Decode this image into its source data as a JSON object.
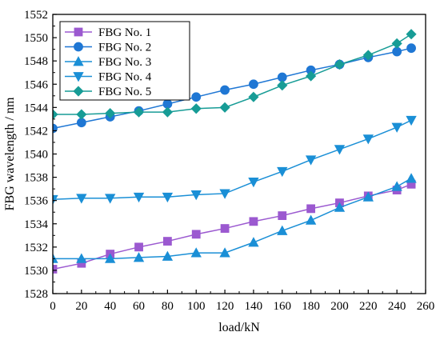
{
  "chart_data": {
    "type": "line",
    "title": "",
    "xlabel": "load/kN",
    "ylabel": "FBG wavelength / nm",
    "xlim": [
      0,
      260
    ],
    "ylim": [
      1528,
      1552
    ],
    "xticks": [
      0,
      20,
      40,
      60,
      80,
      100,
      120,
      140,
      160,
      180,
      200,
      220,
      240,
      260
    ],
    "yticks": [
      1528,
      1530,
      1532,
      1534,
      1536,
      1538,
      1540,
      1542,
      1544,
      1546,
      1548,
      1550,
      1552
    ],
    "grid": false,
    "legend_position": "top-left",
    "x": [
      0,
      20,
      40,
      60,
      80,
      100,
      120,
      140,
      160,
      180,
      200,
      220,
      240,
      250
    ],
    "series": [
      {
        "name": "FBG No. 1",
        "color": "#9b59d0",
        "marker": "square",
        "values": [
          1530.1,
          1530.6,
          1531.4,
          1532.0,
          1532.5,
          1533.1,
          1533.6,
          1534.2,
          1534.7,
          1535.3,
          1535.8,
          1536.4,
          1536.9,
          1537.4
        ]
      },
      {
        "name": "FBG No. 2",
        "color": "#1f77d4",
        "marker": "circle",
        "values": [
          1542.2,
          1542.7,
          1543.2,
          1543.7,
          1544.3,
          1544.9,
          1545.5,
          1546.0,
          1546.6,
          1547.2,
          1547.7,
          1548.3,
          1548.8,
          1549.1
        ]
      },
      {
        "name": "FBG No. 3",
        "color": "#1a8fd6",
        "marker": "triangle-up",
        "values": [
          1531.0,
          1531.0,
          1531.0,
          1531.1,
          1531.2,
          1531.5,
          1531.5,
          1532.4,
          1533.4,
          1534.3,
          1535.4,
          1536.3,
          1537.2,
          1537.9
        ]
      },
      {
        "name": "FBG No. 4",
        "color": "#1a8fd6",
        "marker": "triangle-down",
        "values": [
          1536.1,
          1536.2,
          1536.2,
          1536.3,
          1536.3,
          1536.5,
          1536.6,
          1537.6,
          1538.5,
          1539.5,
          1540.4,
          1541.3,
          1542.3,
          1542.9
        ]
      },
      {
        "name": "FBG No. 5",
        "color": "#179c96",
        "marker": "diamond",
        "values": [
          1543.4,
          1543.4,
          1543.5,
          1543.6,
          1543.6,
          1543.9,
          1544.0,
          1544.9,
          1545.9,
          1546.7,
          1547.7,
          1548.5,
          1549.5,
          1550.3
        ]
      }
    ]
  }
}
